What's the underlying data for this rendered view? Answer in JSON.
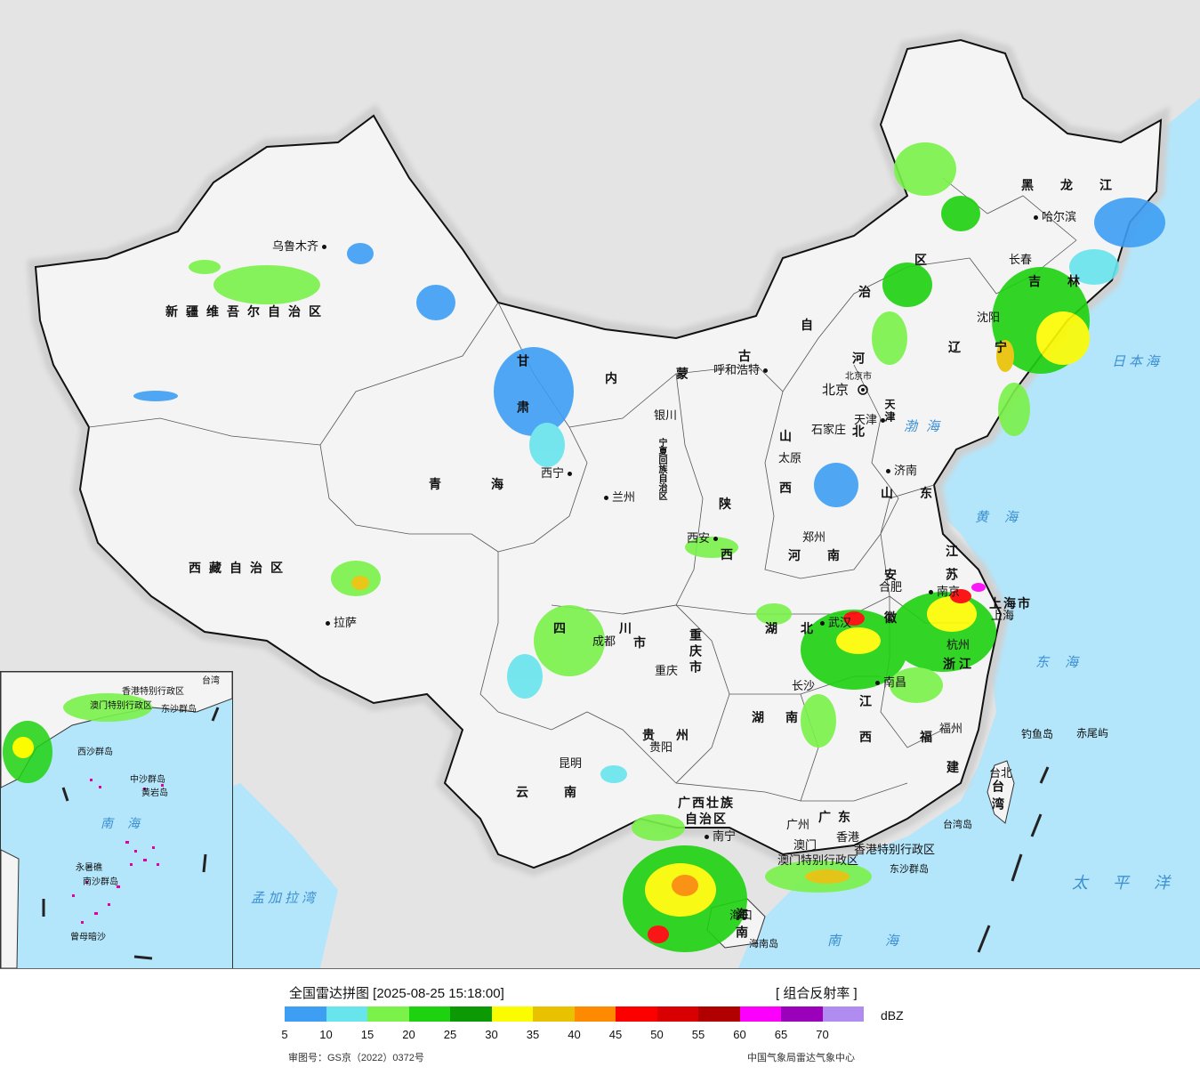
{
  "title": "全国雷达拼图 [2025-08-25 15:18:00]",
  "product": "[ 组合反射率 ]",
  "unit": "dBZ",
  "legend": {
    "colors": [
      "#3d9ef4",
      "#67e4ec",
      "#7af24a",
      "#1ed210",
      "#0b9a04",
      "#fcfc00",
      "#e8c200",
      "#fd8a00",
      "#fc0000",
      "#d80000",
      "#b00000",
      "#fb00fb",
      "#9b00bb",
      "#b08bf0"
    ],
    "ticks": [
      "5",
      "10",
      "15",
      "20",
      "25",
      "30",
      "35",
      "40",
      "45",
      "50",
      "55",
      "60",
      "65",
      "70"
    ]
  },
  "footer": {
    "approval": "审图号：GS京（2022）0372号",
    "source": "中国气象局雷达气象中心"
  },
  "provinces": [
    {
      "id": "xinjiang",
      "name": "新疆维吾尔自治区"
    },
    {
      "id": "xizang",
      "name": "西藏自治区"
    },
    {
      "id": "qinghai",
      "name": "青海"
    },
    {
      "id": "gansu",
      "name": "甘肃"
    },
    {
      "id": "neimenggu-1",
      "name": "内"
    },
    {
      "id": "neimenggu-2",
      "name": "蒙"
    },
    {
      "id": "neimenggu-3",
      "name": "古"
    },
    {
      "id": "neimenggu-4",
      "name": "自"
    },
    {
      "id": "neimenggu-5",
      "name": "治"
    },
    {
      "id": "neimenggu-6",
      "name": "区"
    },
    {
      "id": "heilongjiang",
      "name": "黑龙江"
    },
    {
      "id": "jilin",
      "name": "吉林"
    },
    {
      "id": "liaoning",
      "name": "辽宁"
    },
    {
      "id": "hebei",
      "name": "河北"
    },
    {
      "id": "tianjin",
      "name": "天津"
    },
    {
      "id": "shanxi-1",
      "name": "山"
    },
    {
      "id": "shanxi-2",
      "name": "西"
    },
    {
      "id": "shandong",
      "name": "山东"
    },
    {
      "id": "henan",
      "name": "河南"
    },
    {
      "id": "shaanxi-1",
      "name": "陕"
    },
    {
      "id": "shaanxi-2",
      "name": "西"
    },
    {
      "id": "ningxia",
      "name": "宁夏回族自治区"
    },
    {
      "id": "jiangsu",
      "name": "江苏"
    },
    {
      "id": "anhui-1",
      "name": "安"
    },
    {
      "id": "anhui-2",
      "name": "徽"
    },
    {
      "id": "shanghai",
      "name": "上海市"
    },
    {
      "id": "zhejiang",
      "name": "浙江"
    },
    {
      "id": "hubei",
      "name": "湖北"
    },
    {
      "id": "sichuan",
      "name": "四川"
    },
    {
      "id": "chongqing",
      "name": "重庆市"
    },
    {
      "id": "hunan",
      "name": "湖南"
    },
    {
      "id": "jiangxi-1",
      "name": "江"
    },
    {
      "id": "jiangxi-2",
      "name": "西"
    },
    {
      "id": "fujian-1",
      "name": "福"
    },
    {
      "id": "fujian-2",
      "name": "建"
    },
    {
      "id": "guizhou",
      "name": "贵州"
    },
    {
      "id": "yunnan",
      "name": "云南"
    },
    {
      "id": "guangxi-1",
      "name": "广西壮族"
    },
    {
      "id": "guangxi-2",
      "name": "自治区"
    },
    {
      "id": "guangdong",
      "name": "广东"
    },
    {
      "id": "taiwan",
      "name": "台湾"
    },
    {
      "id": "hainan",
      "name": "海南"
    },
    {
      "id": "gansu-shi",
      "name": "市"
    }
  ],
  "cities": [
    {
      "id": "urumqi",
      "name": "乌鲁木齐"
    },
    {
      "id": "lhasa",
      "name": "拉萨"
    },
    {
      "id": "xining",
      "name": "西宁"
    },
    {
      "id": "lanzhou",
      "name": "兰州"
    },
    {
      "id": "yinchuan",
      "name": "银川"
    },
    {
      "id": "hohhot",
      "name": "呼和浩特"
    },
    {
      "id": "beijing",
      "name": "北京"
    },
    {
      "id": "beijing-shi",
      "name": "北京市"
    },
    {
      "id": "tianjin-shi",
      "name": "天津"
    },
    {
      "id": "shijiazhuang",
      "name": "石家庄"
    },
    {
      "id": "taiyuan",
      "name": "太原"
    },
    {
      "id": "jinan",
      "name": "济南"
    },
    {
      "id": "zhengzhou",
      "name": "郑州"
    },
    {
      "id": "xian",
      "name": "西安"
    },
    {
      "id": "harbin",
      "name": "哈尔滨"
    },
    {
      "id": "changchun",
      "name": "长春"
    },
    {
      "id": "shenyang",
      "name": "沈阳"
    },
    {
      "id": "hefei",
      "name": "合肥"
    },
    {
      "id": "nanjing",
      "name": "南京"
    },
    {
      "id": "shanghai-c",
      "name": "上海"
    },
    {
      "id": "hangzhou",
      "name": "杭州"
    },
    {
      "id": "wuhan",
      "name": "武汉"
    },
    {
      "id": "chengdu",
      "name": "成都"
    },
    {
      "id": "chongqing-c",
      "name": "重庆"
    },
    {
      "id": "changsha",
      "name": "长沙"
    },
    {
      "id": "nanchang",
      "name": "南昌"
    },
    {
      "id": "fuzhou",
      "name": "福州"
    },
    {
      "id": "guiyang",
      "name": "贵阳"
    },
    {
      "id": "kunming",
      "name": "昆明"
    },
    {
      "id": "nanning",
      "name": "南宁"
    },
    {
      "id": "guangzhou",
      "name": "广州"
    },
    {
      "id": "hongkong",
      "name": "香港"
    },
    {
      "id": "macau",
      "name": "澳门"
    },
    {
      "id": "hk-sar",
      "name": "香港特别行政区"
    },
    {
      "id": "macau-sar",
      "name": "澳门特别行政区"
    },
    {
      "id": "taibei",
      "name": "台北"
    },
    {
      "id": "haikou",
      "name": "海口"
    },
    {
      "id": "diaoyu",
      "name": "钓鱼岛"
    },
    {
      "id": "chiwei",
      "name": "赤尾屿"
    },
    {
      "id": "taiwan-island",
      "name": "台湾岛"
    },
    {
      "id": "hainan-island",
      "name": "海南岛"
    },
    {
      "id": "dongsha",
      "name": "东沙群岛"
    }
  ],
  "seas": [
    {
      "id": "bohai",
      "name": "渤海"
    },
    {
      "id": "huanghai",
      "name": "黄海"
    },
    {
      "id": "donghai",
      "name": "东海"
    },
    {
      "id": "nanhai",
      "name": "南海"
    },
    {
      "id": "ribenhai",
      "name": "日本海"
    },
    {
      "id": "taipingyang",
      "name": "太平洋"
    },
    {
      "id": "mengjialawan",
      "name": "孟加拉湾"
    }
  ],
  "inset": {
    "sea": "南海",
    "labels": [
      "中沙群岛",
      "黄岩岛",
      "永暑礁",
      "南沙群岛",
      "曾母暗沙",
      "西沙群岛",
      "台湾",
      "香港特别行政区",
      "澳门特别行政区",
      "东沙群岛"
    ]
  }
}
